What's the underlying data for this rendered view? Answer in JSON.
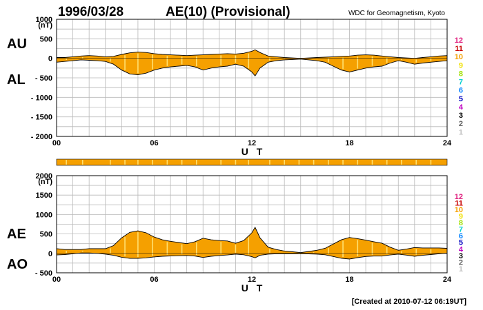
{
  "header": {
    "date": "1996/03/28",
    "title": "AE(10) (Provisional)",
    "source": "WDC for Geomagnetism, Kyoto"
  },
  "footer": {
    "created": "[Created at 2010-07-12 06:19UT]"
  },
  "colors": {
    "fill": "#f5a000",
    "outline": "#000000",
    "grid": "#b8b8b8",
    "band": "#f5a000",
    "highlight": "#ffe070"
  },
  "chart_data": [
    {
      "type": "area",
      "panel": "AU/AL",
      "series_labels": [
        "AU",
        "AL"
      ],
      "unit_label": "(nT)",
      "xlabel": "U T",
      "ylim": [
        -2000,
        1000
      ],
      "yticks": [
        1000,
        500,
        0,
        -500,
        -1000,
        -1500,
        -2000
      ],
      "ytick_labels": [
        "1000",
        "500",
        "0",
        "- 500",
        "- 1000",
        "- 1500",
        "- 2000"
      ],
      "xlim": [
        0,
        24
      ],
      "xticks": [
        0,
        6,
        12,
        18,
        24
      ],
      "xtick_labels": [
        "00",
        "06",
        "12",
        "18",
        "24"
      ],
      "grid": true,
      "upper_series": {
        "name": "AU",
        "x": [
          0,
          0.5,
          1,
          1.5,
          2,
          2.5,
          3,
          3.5,
          4,
          4.5,
          5,
          5.5,
          6,
          6.5,
          7,
          7.5,
          8,
          8.5,
          9,
          9.5,
          10,
          10.5,
          11,
          11.5,
          12,
          12.2,
          12.5,
          13,
          13.5,
          14,
          14.5,
          15,
          15.5,
          16,
          16.5,
          17,
          17.5,
          18,
          18.5,
          19,
          19.5,
          20,
          20.5,
          21,
          21.5,
          22,
          22.5,
          23,
          23.5,
          24
        ],
        "y": [
          20,
          20,
          40,
          60,
          70,
          60,
          40,
          50,
          100,
          140,
          160,
          150,
          120,
          100,
          90,
          80,
          70,
          80,
          90,
          100,
          110,
          120,
          110,
          130,
          180,
          220,
          150,
          60,
          40,
          20,
          10,
          0,
          10,
          20,
          30,
          40,
          50,
          60,
          80,
          90,
          80,
          60,
          40,
          20,
          10,
          0,
          20,
          40,
          60,
          70
        ]
      },
      "lower_series": {
        "name": "AL",
        "x": [
          0,
          0.5,
          1,
          1.5,
          2,
          2.5,
          3,
          3.5,
          4,
          4.5,
          5,
          5.5,
          6,
          6.5,
          7,
          7.5,
          8,
          8.5,
          9,
          9.5,
          10,
          10.5,
          11,
          11.5,
          12,
          12.2,
          12.5,
          13,
          13.5,
          14,
          14.5,
          15,
          15.5,
          16,
          16.5,
          17,
          17.5,
          18,
          18.5,
          19,
          19.5,
          20,
          20.5,
          21,
          21.5,
          22,
          22.5,
          23,
          23.5,
          24
        ],
        "y": [
          -100,
          -80,
          -60,
          -40,
          -50,
          -60,
          -80,
          -150,
          -300,
          -400,
          -420,
          -380,
          -300,
          -250,
          -220,
          -200,
          -180,
          -220,
          -300,
          -250,
          -220,
          -200,
          -150,
          -200,
          -350,
          -450,
          -250,
          -100,
          -60,
          -40,
          -30,
          -20,
          -40,
          -60,
          -100,
          -200,
          -300,
          -350,
          -300,
          -250,
          -220,
          -200,
          -120,
          -60,
          -100,
          -150,
          -120,
          -100,
          -80,
          -60
        ]
      }
    },
    {
      "type": "area",
      "panel": "AE/AO",
      "series_labels": [
        "AE",
        "AO"
      ],
      "unit_label": "(nT)",
      "xlabel": "U T",
      "ylim": [
        -500,
        2000
      ],
      "yticks": [
        2000,
        1500,
        1000,
        500,
        0,
        -500
      ],
      "ytick_labels": [
        "2000",
        "1500",
        "1000",
        "500",
        "0",
        "- 500"
      ],
      "xlim": [
        0,
        24
      ],
      "xticks": [
        0,
        6,
        12,
        18,
        24
      ],
      "xtick_labels": [
        "00",
        "06",
        "12",
        "18",
        "24"
      ],
      "grid": true,
      "upper_series": {
        "name": "AE",
        "x": [
          0,
          0.5,
          1,
          1.5,
          2,
          2.5,
          3,
          3.5,
          4,
          4.5,
          5,
          5.5,
          6,
          6.5,
          7,
          7.5,
          8,
          8.5,
          9,
          9.5,
          10,
          10.5,
          11,
          11.5,
          12,
          12.2,
          12.5,
          13,
          13.5,
          14,
          14.5,
          15,
          15.5,
          16,
          16.5,
          17,
          17.5,
          18,
          18.5,
          19,
          19.5,
          20,
          20.5,
          21,
          21.5,
          22,
          22.5,
          23,
          23.5,
          24
        ],
        "y": [
          120,
          100,
          100,
          100,
          120,
          120,
          120,
          200,
          400,
          540,
          580,
          530,
          420,
          350,
          310,
          280,
          250,
          300,
          390,
          350,
          330,
          320,
          260,
          330,
          530,
          670,
          400,
          160,
          100,
          60,
          40,
          20,
          50,
          80,
          130,
          240,
          350,
          410,
          380,
          340,
          300,
          260,
          160,
          80,
          110,
          150,
          140,
          140,
          140,
          130
        ]
      },
      "lower_series": {
        "name": "AO",
        "x": [
          0,
          0.5,
          1,
          1.5,
          2,
          2.5,
          3,
          3.5,
          4,
          4.5,
          5,
          5.5,
          6,
          6.5,
          7,
          7.5,
          8,
          8.5,
          9,
          9.5,
          10,
          10.5,
          11,
          11.5,
          12,
          12.2,
          12.5,
          13,
          13.5,
          14,
          14.5,
          15,
          15.5,
          16,
          16.5,
          17,
          17.5,
          18,
          18.5,
          19,
          19.5,
          20,
          20.5,
          21,
          21.5,
          22,
          22.5,
          23,
          23.5,
          24
        ],
        "y": [
          -40,
          -30,
          -10,
          10,
          10,
          0,
          -20,
          -50,
          -100,
          -130,
          -130,
          -115,
          -90,
          -75,
          -65,
          -60,
          -55,
          -70,
          -105,
          -75,
          -55,
          -40,
          -20,
          -35,
          -85,
          -115,
          -50,
          -20,
          -10,
          -10,
          -10,
          -10,
          -15,
          -20,
          -35,
          -80,
          -125,
          -145,
          -110,
          -80,
          -70,
          -70,
          -40,
          -20,
          -45,
          -75,
          -50,
          -30,
          -10,
          5
        ]
      }
    }
  ],
  "right_scale": [
    {
      "label": "12",
      "color": "#e0207f"
    },
    {
      "label": "11",
      "color": "#c80000"
    },
    {
      "label": "10",
      "color": "#f5a000"
    },
    {
      "label": "9",
      "color": "#f0e000"
    },
    {
      "label": "8",
      "color": "#a0e000"
    },
    {
      "label": "7",
      "color": "#00d0d0"
    },
    {
      "label": "6",
      "color": "#0080ff"
    },
    {
      "label": "5",
      "color": "#0000c0"
    },
    {
      "label": "4",
      "color": "#c000c0"
    },
    {
      "label": "3",
      "color": "#000000"
    },
    {
      "label": "2",
      "color": "#606060"
    },
    {
      "label": "1",
      "color": "#c0c0c0"
    }
  ],
  "highlight_hours": [
    0.6,
    1.6,
    3.3,
    4.2,
    5.0,
    5.9,
    6.8,
    7.7,
    8.6,
    10.1,
    11.0,
    11.8,
    13.1,
    14.0,
    14.9,
    15.8,
    16.7,
    17.6,
    18.5,
    19.4,
    20.3,
    21.2,
    22.1,
    23.0
  ]
}
